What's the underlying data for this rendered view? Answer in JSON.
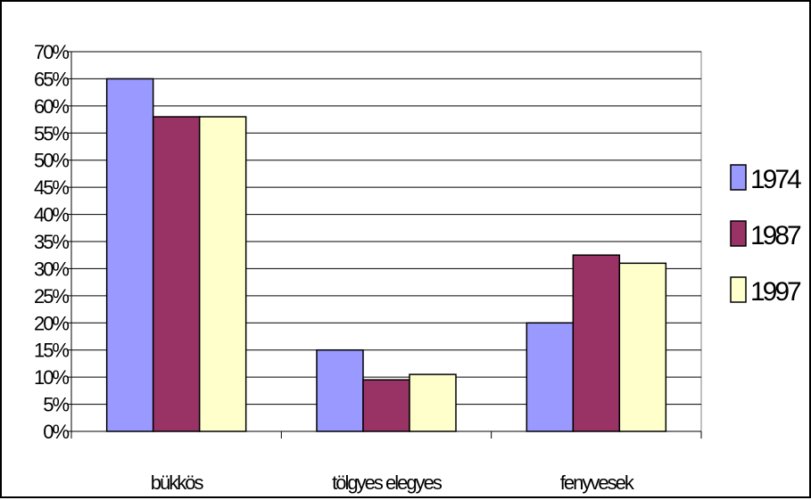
{
  "chart_data": {
    "type": "bar",
    "title": "",
    "xlabel": "",
    "ylabel": "",
    "categories": [
      "bükkös",
      "tölgyes elegyes",
      "fenyvesek"
    ],
    "series": [
      {
        "name": "1974",
        "color": "#9999ff",
        "values": [
          65,
          15,
          20
        ]
      },
      {
        "name": "1987",
        "color": "#993366",
        "values": [
          58,
          9.5,
          32.5
        ]
      },
      {
        "name": "1997",
        "color": "#ffffcc",
        "values": [
          58,
          10.5,
          31
        ]
      }
    ],
    "ylim": [
      0,
      70
    ],
    "yticks": [
      0,
      5,
      10,
      15,
      20,
      25,
      30,
      35,
      40,
      45,
      50,
      55,
      60,
      65,
      70
    ],
    "ytick_labels": [
      "0%",
      "5%",
      "10%",
      "15%",
      "20%",
      "25%",
      "30%",
      "35%",
      "40%",
      "45%",
      "50%",
      "55%",
      "60%",
      "65%",
      "70%"
    ],
    "grid": true,
    "legend_position": "right"
  }
}
